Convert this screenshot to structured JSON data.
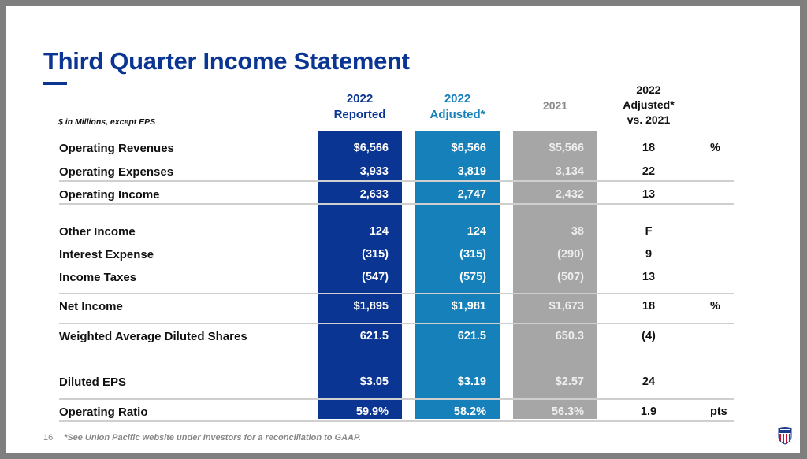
{
  "title": "Third Quarter Income Statement",
  "units_note": "$ in Millions, except EPS",
  "columns": {
    "reported": {
      "line1": "2022",
      "line2": "Reported"
    },
    "adjusted": {
      "line1": "2022",
      "line2": "Adjusted*"
    },
    "prior": {
      "line1": "2021"
    },
    "change": {
      "line1": "2022",
      "line2": "Adjusted*",
      "line3": "vs. 2021"
    }
  },
  "colors": {
    "reported": "#0a3592",
    "adjusted": "#1580b9",
    "prior": "#a6a6a6",
    "title": "#0a3592"
  },
  "rows": [
    {
      "label": "Operating Revenues",
      "reported": "$6,566",
      "adjusted": "$6,566",
      "prior": "$5,566",
      "change": "18",
      "unit": "%"
    },
    {
      "label": "Operating Expenses",
      "reported": "3,933",
      "adjusted": "3,819",
      "prior": "3,134",
      "change": "22",
      "unit": ""
    },
    {
      "label": "Operating Income",
      "reported": "2,633",
      "adjusted": "2,747",
      "prior": "2,432",
      "change": "13",
      "unit": ""
    },
    {
      "label": "Other Income",
      "reported": "124",
      "adjusted": "124",
      "prior": "38",
      "change": "F",
      "unit": ""
    },
    {
      "label": "Interest Expense",
      "reported": "(315)",
      "adjusted": "(315)",
      "prior": "(290)",
      "change": "9",
      "unit": ""
    },
    {
      "label": "Income Taxes",
      "reported": "(547)",
      "adjusted": "(575)",
      "prior": "(507)",
      "change": "13",
      "unit": ""
    },
    {
      "label": "Net Income",
      "reported": "$1,895",
      "adjusted": "$1,981",
      "prior": "$1,673",
      "change": "18",
      "unit": "%"
    },
    {
      "label": "Weighted Average Diluted Shares",
      "reported": "621.5",
      "adjusted": "621.5",
      "prior": "650.3",
      "change": "(4)",
      "unit": ""
    },
    {
      "label": "Diluted EPS",
      "reported": "$3.05",
      "adjusted": "$3.19",
      "prior": "$2.57",
      "change": "24",
      "unit": ""
    },
    {
      "label": "Operating Ratio",
      "reported": "59.9%",
      "adjusted": "58.2%",
      "prior": "56.3%",
      "change": "1.9",
      "unit": "pts"
    }
  ],
  "footer": {
    "page_number": "16",
    "note": "*See Union Pacific website under Investors for a reconciliation to GAAP."
  },
  "logo": {
    "name": "union-pacific-shield",
    "text": "UNION PACIFIC"
  }
}
